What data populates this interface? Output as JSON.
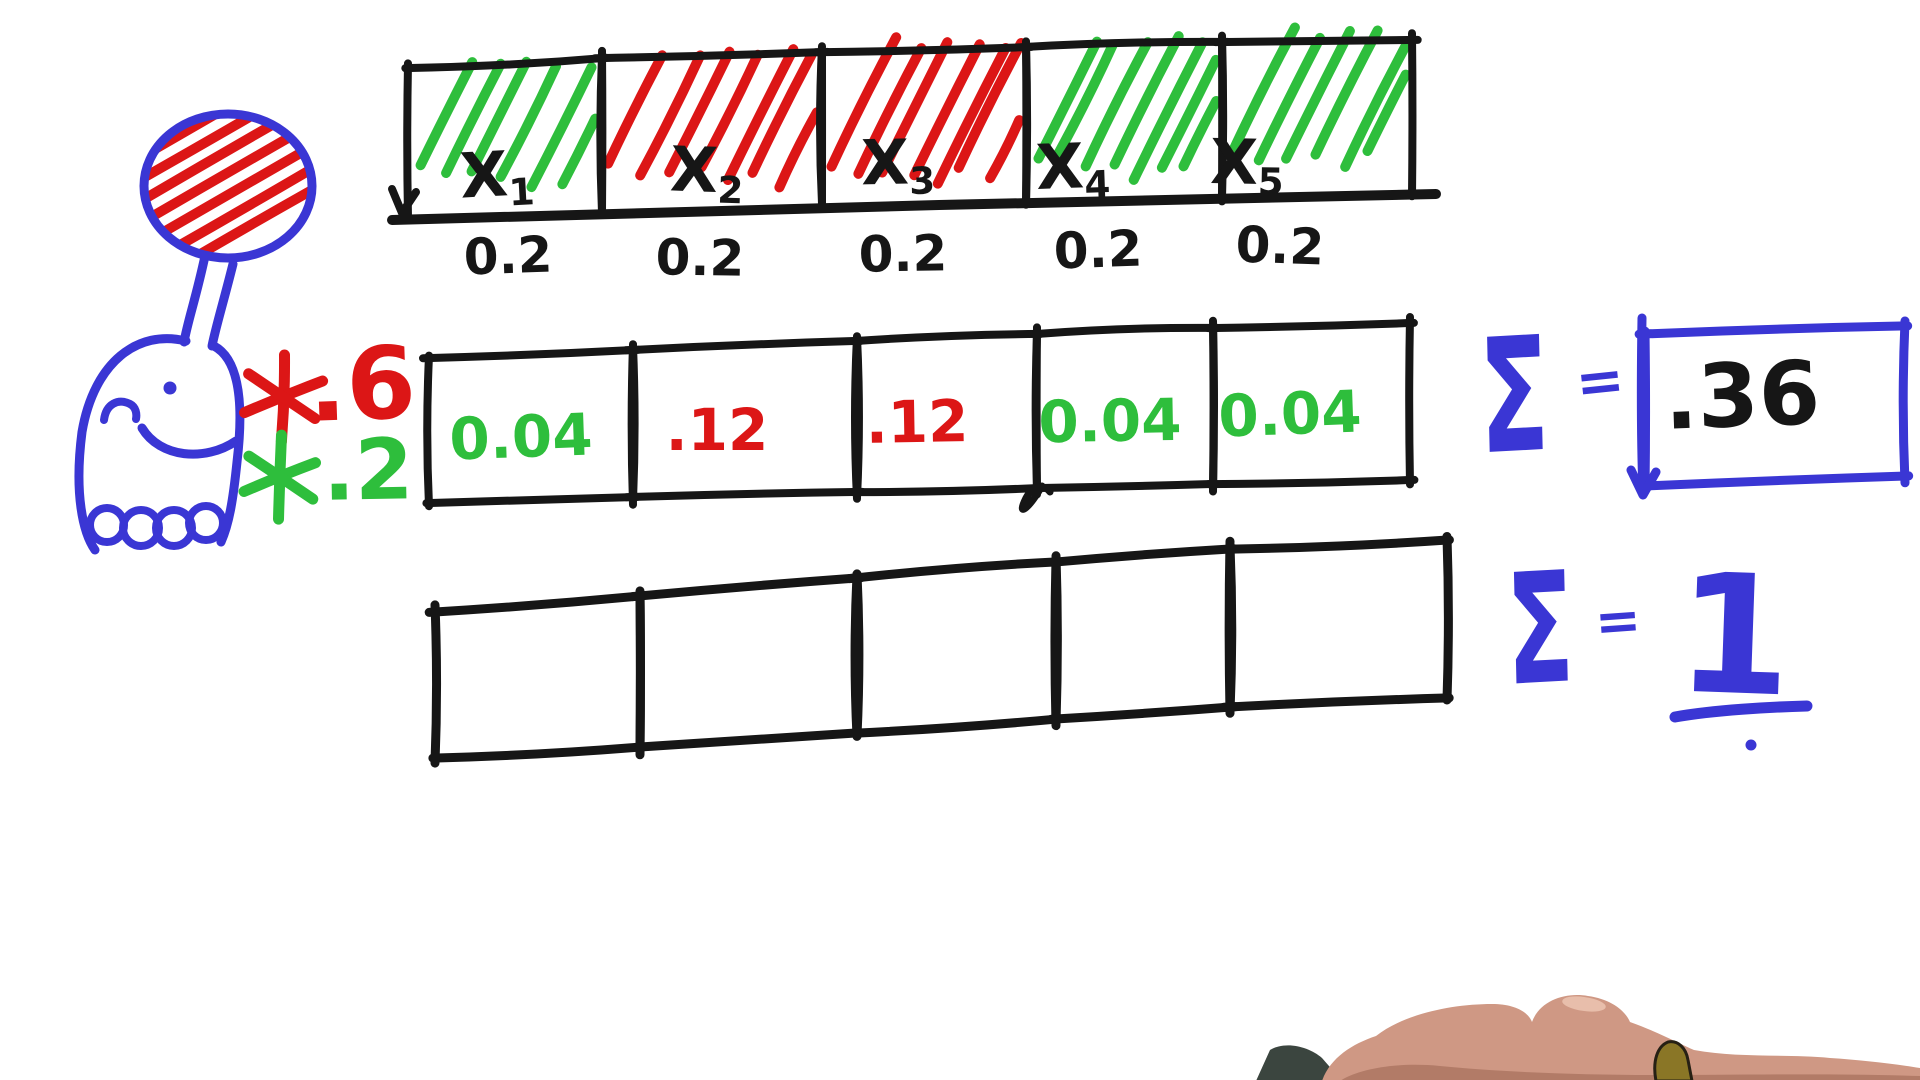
{
  "palette": {
    "black": "#161616",
    "red": "#dc1616",
    "green": "#2ebe3c",
    "blue": "#3a36d4",
    "skin": "#cf9884",
    "skin_shadow": "#b27b67",
    "marker_tip": "#3b453f",
    "marker_accent": "#8a7626",
    "background": "#ffffff"
  },
  "figures": {
    "robot": "smiling-robot-with-red-hatched-balloon",
    "hand": "presenter-hand-holding-marker"
  },
  "top_row": {
    "cells": [
      {
        "name": "X",
        "sub": "1",
        "prob": "0.2",
        "hatch": "green"
      },
      {
        "name": "X",
        "sub": "2",
        "prob": "0.2",
        "hatch": "red"
      },
      {
        "name": "X",
        "sub": "3",
        "prob": "0.2",
        "hatch": "red"
      },
      {
        "name": "X",
        "sub": "4",
        "prob": "0.2",
        "hatch": "green"
      },
      {
        "name": "X",
        "sub": "5",
        "prob": "0.2",
        "hatch": "green"
      }
    ]
  },
  "multipliers": [
    {
      "icon": "six-spoke-asterisk",
      "value": ".6",
      "color": "red"
    },
    {
      "icon": "six-spoke-asterisk",
      "value": ".2",
      "color": "green"
    }
  ],
  "middle_row": {
    "cells": [
      {
        "value": "0.04",
        "color": "green"
      },
      {
        "value": ".12",
        "color": "red"
      },
      {
        "value": ".12",
        "color": "red"
      },
      {
        "value": "0.04",
        "color": "green"
      },
      {
        "value": "0.04",
        "color": "green"
      }
    ],
    "sum": {
      "sigma": "Σ",
      "equals": "=",
      "value": ".36"
    }
  },
  "bottom_row": {
    "cells": [
      "",
      "",
      "",
      "",
      ""
    ],
    "sum": {
      "sigma": "Σ",
      "equals": "=",
      "value": "1"
    }
  }
}
